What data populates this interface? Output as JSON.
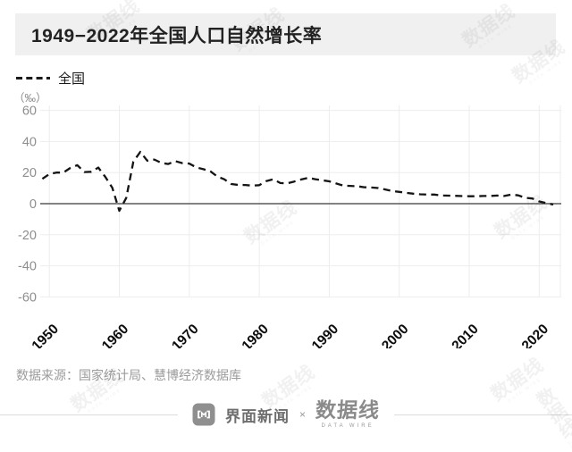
{
  "title": "1949−2022年全国人口自然增长率",
  "legend": {
    "label": "全国"
  },
  "unit_label": "（‰）",
  "source": "数据来源：国家统计局、慧博经济数据库",
  "watermark": {
    "text": "数据线",
    "subtext": "DATA WIRE"
  },
  "footer": {
    "brand_left": "界面新闻",
    "separator": "×",
    "brand_right": "数据线",
    "brand_right_sub": "DATA WIRE"
  },
  "chart_data": {
    "type": "line",
    "title": "1949−2022年全国人口自然增长率",
    "ylabel": "（‰）",
    "ylim": [
      -60,
      60
    ],
    "yticks": [
      60,
      40,
      20,
      0,
      -20,
      -40,
      -60
    ],
    "xticks": [
      1950,
      1960,
      1970,
      1980,
      1990,
      2000,
      2010,
      2020
    ],
    "grid": true,
    "legend_position": "top-left",
    "line_style": "dashed",
    "line_color": "#141414",
    "series": [
      {
        "name": "全国",
        "x": [
          1949,
          1950,
          1951,
          1952,
          1953,
          1954,
          1955,
          1956,
          1957,
          1958,
          1959,
          1960,
          1961,
          1962,
          1963,
          1964,
          1965,
          1966,
          1967,
          1968,
          1969,
          1970,
          1971,
          1972,
          1973,
          1974,
          1975,
          1976,
          1977,
          1978,
          1979,
          1980,
          1981,
          1982,
          1983,
          1984,
          1985,
          1986,
          1987,
          1988,
          1989,
          1990,
          1991,
          1992,
          1993,
          1994,
          1995,
          1996,
          1997,
          1998,
          1999,
          2000,
          2001,
          2002,
          2003,
          2004,
          2005,
          2006,
          2007,
          2008,
          2009,
          2010,
          2011,
          2012,
          2013,
          2014,
          2015,
          2016,
          2017,
          2018,
          2019,
          2020,
          2021,
          2022
        ],
        "values": [
          16.0,
          19.0,
          20.0,
          20.0,
          23.0,
          24.79,
          20.32,
          20.5,
          23.23,
          17.24,
          10.19,
          -4.57,
          3.78,
          26.99,
          33.33,
          27.64,
          28.38,
          26.22,
          25.53,
          27.38,
          26.08,
          25.83,
          23.33,
          22.16,
          20.89,
          17.48,
          15.69,
          12.66,
          12.06,
          12.0,
          11.61,
          11.87,
          14.55,
          15.68,
          13.29,
          13.08,
          14.26,
          15.57,
          16.61,
          15.73,
          15.04,
          14.39,
          12.98,
          11.6,
          11.45,
          11.21,
          10.55,
          10.42,
          10.06,
          9.14,
          8.18,
          7.58,
          6.95,
          6.45,
          6.01,
          5.87,
          5.89,
          5.28,
          5.17,
          5.08,
          4.87,
          4.79,
          4.79,
          4.95,
          4.92,
          5.21,
          4.96,
          5.86,
          5.32,
          3.81,
          3.34,
          1.45,
          0.34,
          -0.6
        ]
      }
    ]
  }
}
